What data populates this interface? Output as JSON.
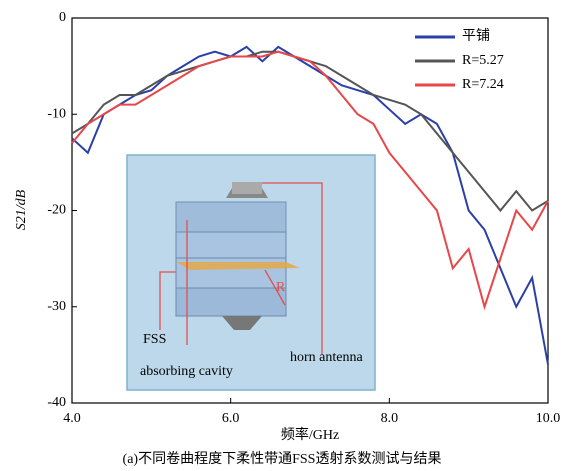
{
  "chart_data": {
    "type": "line",
    "x_label": "频率/GHz",
    "y_label": "S21/dB",
    "caption": "(a)不同卷曲程度下柔性带通FSS透射系数测试与结果",
    "annotations": [
      "FSS",
      "absorbing cavity",
      "horn antenna",
      "R"
    ],
    "x": [
      4.0,
      4.2,
      4.4,
      4.6,
      4.8,
      5.0,
      5.2,
      5.4,
      5.6,
      5.8,
      6.0,
      6.2,
      6.4,
      6.6,
      6.8,
      7.0,
      7.2,
      7.4,
      7.6,
      7.8,
      8.0,
      8.2,
      8.4,
      8.6,
      8.8,
      9.0,
      9.2,
      9.4,
      9.6,
      9.8,
      10.0
    ],
    "series": [
      {
        "name": "平铺",
        "color": "#2b3fa8",
        "values": [
          -12.5,
          -14,
          -10,
          -9,
          -8,
          -7.5,
          -6,
          -5,
          -4,
          -3.5,
          -4,
          -3,
          -4.5,
          -3,
          -4,
          -5,
          -6,
          -7,
          -7.5,
          -8,
          -9.5,
          -11,
          -10,
          -11,
          -14,
          -20,
          -22,
          -26,
          -30,
          -27,
          -36
        ]
      },
      {
        "name": "R=5.27",
        "color": "#555555",
        "values": [
          -12,
          -11,
          -9,
          -8,
          -8,
          -7,
          -6,
          -5.5,
          -5,
          -4.5,
          -4,
          -4,
          -3.5,
          -3.5,
          -4,
          -4.5,
          -5,
          -6,
          -7,
          -8,
          -8.5,
          -9,
          -10,
          -12,
          -14,
          -16,
          -18,
          -20,
          -18,
          -20,
          -19
        ]
      },
      {
        "name": "R=7.24",
        "color": "#e8474a",
        "values": [
          -13,
          -11,
          -10,
          -9,
          -9,
          -8,
          -7,
          -6,
          -5,
          -4.5,
          -4,
          -4,
          -4,
          -3.5,
          -4,
          -4.5,
          -6,
          -8,
          -10,
          -11,
          -14,
          -16,
          -18,
          -20,
          -26,
          -24,
          -30,
          -25,
          -20,
          -22,
          -19
        ]
      }
    ],
    "xlim": [
      4,
      10
    ],
    "ylim": [
      -40,
      0
    ],
    "xticks": [
      {
        "value": 4,
        "label": "4.0"
      },
      {
        "value": 6,
        "label": "6.0"
      },
      {
        "value": 8,
        "label": "8.0"
      },
      {
        "value": 10,
        "label": "10.0"
      }
    ],
    "yticks": [
      0,
      -10,
      -20,
      -30,
      -40
    ],
    "legend": "top-right"
  }
}
